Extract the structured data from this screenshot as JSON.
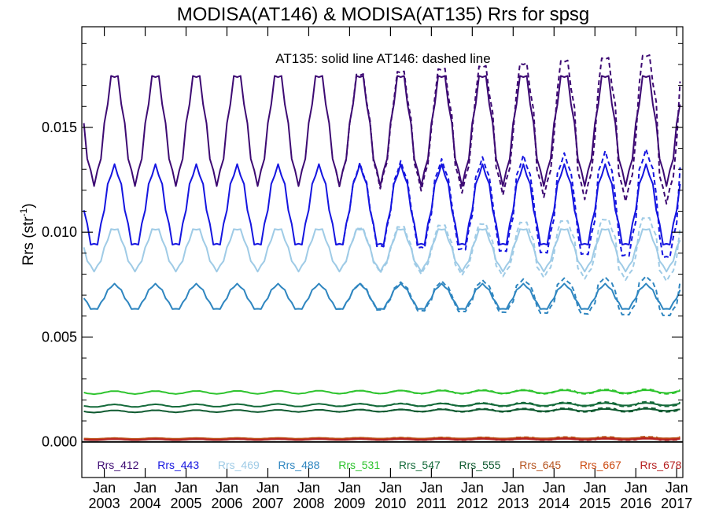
{
  "chart_data": {
    "type": "line",
    "title": "MODISA(AT146) & MODISA(AT135)  Rrs for spsg",
    "annotation": "AT135: solid line   AT146: dashed line",
    "ylabel_main": "Rrs (str",
    "ylabel_sup": "-1",
    "ylabel_close": ")",
    "ylim": [
      -0.0017,
      0.0198
    ],
    "xlim": [
      2002.45,
      2017.15
    ],
    "yticks": [
      {
        "v": 0.0,
        "label": "0.000"
      },
      {
        "v": 0.005,
        "label": "0.005"
      },
      {
        "v": 0.01,
        "label": "0.010"
      },
      {
        "v": 0.015,
        "label": "0.015"
      }
    ],
    "xticks": [
      {
        "v": 2003,
        "top": "Jan",
        "bottom": "2003"
      },
      {
        "v": 2004,
        "top": "Jan",
        "bottom": "2004"
      },
      {
        "v": 2005,
        "top": "Jan",
        "bottom": "2005"
      },
      {
        "v": 2006,
        "top": "Jan",
        "bottom": "2006"
      },
      {
        "v": 2007,
        "top": "Jan",
        "bottom": "2007"
      },
      {
        "v": 2008,
        "top": "Jan",
        "bottom": "2008"
      },
      {
        "v": 2009,
        "top": "Jan",
        "bottom": "2009"
      },
      {
        "v": 2010,
        "top": "Jan",
        "bottom": "2010"
      },
      {
        "v": 2011,
        "top": "Jan",
        "bottom": "2011"
      },
      {
        "v": 2012,
        "top": "Jan",
        "bottom": "2012"
      },
      {
        "v": 2013,
        "top": "Jan",
        "bottom": "2013"
      },
      {
        "v": 2014,
        "top": "Jan",
        "bottom": "2014"
      },
      {
        "v": 2015,
        "top": "Jan",
        "bottom": "2015"
      },
      {
        "v": 2016,
        "top": "Jan",
        "bottom": "2016"
      },
      {
        "v": 2017,
        "top": "Jan",
        "bottom": "2017"
      }
    ],
    "zero_line": 0.0,
    "series": [
      {
        "name": "Rrs_412",
        "color": "#3d0a73",
        "base": 0.015,
        "amp": 0.0026,
        "drift": 0.0,
        "dash_div": 0.0011
      },
      {
        "name": "Rrs_443",
        "color": "#1515e0",
        "base": 0.0112,
        "amp": 0.0019,
        "drift": 0.0,
        "dash_div": 0.0008
      },
      {
        "name": "Rrs_469",
        "color": "#9fcbe6",
        "base": 0.0092,
        "amp": 0.001,
        "drift": 0.0,
        "dash_div": 0.0006
      },
      {
        "name": "Rrs_488",
        "color": "#2f86c0",
        "base": 0.0069,
        "amp": 0.0006,
        "drift": 0.0,
        "dash_div": 0.0004
      },
      {
        "name": "Rrs_531",
        "color": "#2fc42f",
        "base": 0.00235,
        "amp": 7e-05,
        "drift": 5e-05,
        "dash_div": 5e-05
      },
      {
        "name": "Rrs_547",
        "color": "#146a3a",
        "base": 0.00172,
        "amp": 6e-05,
        "drift": 8e-05,
        "dash_div": 6e-05
      },
      {
        "name": "Rrs_555",
        "color": "#0f5a30",
        "base": 0.00145,
        "amp": 5e-05,
        "drift": 8e-05,
        "dash_div": 6e-05
      },
      {
        "name": "Rrs_645",
        "color": "#b5531e",
        "base": 0.00016,
        "amp": 2e-05,
        "drift": 3e-05,
        "dash_div": 4e-05
      },
      {
        "name": "Rrs_667",
        "color": "#cc4a10",
        "base": 0.00013,
        "amp": 2e-05,
        "drift": 2e-05,
        "dash_div": 3e-05
      },
      {
        "name": "Rrs_678",
        "color": "#b52020",
        "base": 0.00011,
        "amp": 2e-05,
        "drift": 2e-05,
        "dash_div": 3e-05
      }
    ],
    "x_start": 2002.5,
    "x_end": 2017.15,
    "points_per_year": 12,
    "dash_from": 2008.6
  }
}
